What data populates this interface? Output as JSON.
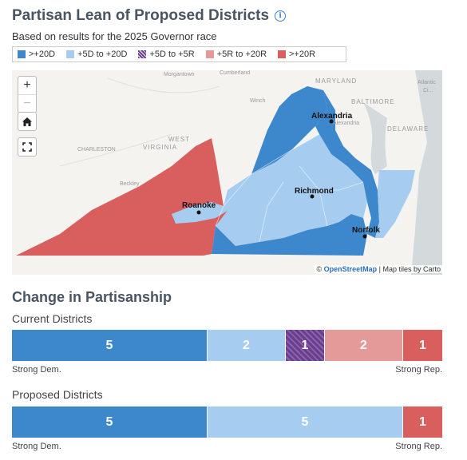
{
  "header": {
    "title": "Partisan Lean of Proposed Districts",
    "info_icon": "info-icon",
    "subtitle": "Based on results for the 2025 Governor race"
  },
  "legend": [
    {
      "label": ">+20D",
      "color": "#3d87cc",
      "hatched": false
    },
    {
      "label": "+5D to +20D",
      "color": "#a6cdf0",
      "hatched": false
    },
    {
      "label": "+5D to +5R",
      "color": "#6a3d8f",
      "hatched": true
    },
    {
      "label": "+5R to +20R",
      "color": "#e59a9a",
      "hatched": false
    },
    {
      "label": ">+20R",
      "color": "#d95f5f",
      "hatched": false
    }
  ],
  "map": {
    "zoom_in": "+",
    "zoom_out": "−",
    "home_icon": "home-icon",
    "fullscreen_icon": "fullscreen-icon",
    "cities": [
      "Alexandria",
      "Richmond",
      "Roanoke",
      "Norfolk"
    ],
    "background_labels": {
      "maryland": "MARYLAND",
      "baltimore": "BALTIMORE",
      "delaware": "DELAWARE",
      "west_virginia_1": "WEST",
      "west_virginia_2": "VIRGINIA",
      "charleston": "CHARLESTON",
      "morgantown": "Morgantown",
      "cumberland": "Cumberland",
      "beckley": "Beckley",
      "winchester": "Winch",
      "atlantic_1": "Atlantic",
      "atlantic_2": "Ci...",
      "alexandria_small": "Alexandria"
    },
    "attribution_prefix": "© ",
    "attribution_link": "OpenStreetMap",
    "attribution_suffix": " | Map tiles by Carto"
  },
  "change": {
    "title": "Change in Partisanship",
    "axis_left": "Strong Dem.",
    "axis_right": "Strong Rep.",
    "current": {
      "label": "Current Districts",
      "segments": [
        {
          "count": 5,
          "color": "#3d87cc",
          "hatched": false
        },
        {
          "count": 2,
          "color": "#a6cdf0",
          "hatched": false
        },
        {
          "count": 1,
          "color": "#6a3d8f",
          "hatched": true
        },
        {
          "count": 2,
          "color": "#e59a9a",
          "hatched": false
        },
        {
          "count": 1,
          "color": "#d95f5f",
          "hatched": false
        }
      ]
    },
    "proposed": {
      "label": "Proposed Districts",
      "segments": [
        {
          "count": 5,
          "color": "#3d87cc",
          "hatched": false
        },
        {
          "count": 5,
          "color": "#a6cdf0",
          "hatched": false
        },
        {
          "count": 1,
          "color": "#d95f5f",
          "hatched": false
        }
      ]
    }
  }
}
